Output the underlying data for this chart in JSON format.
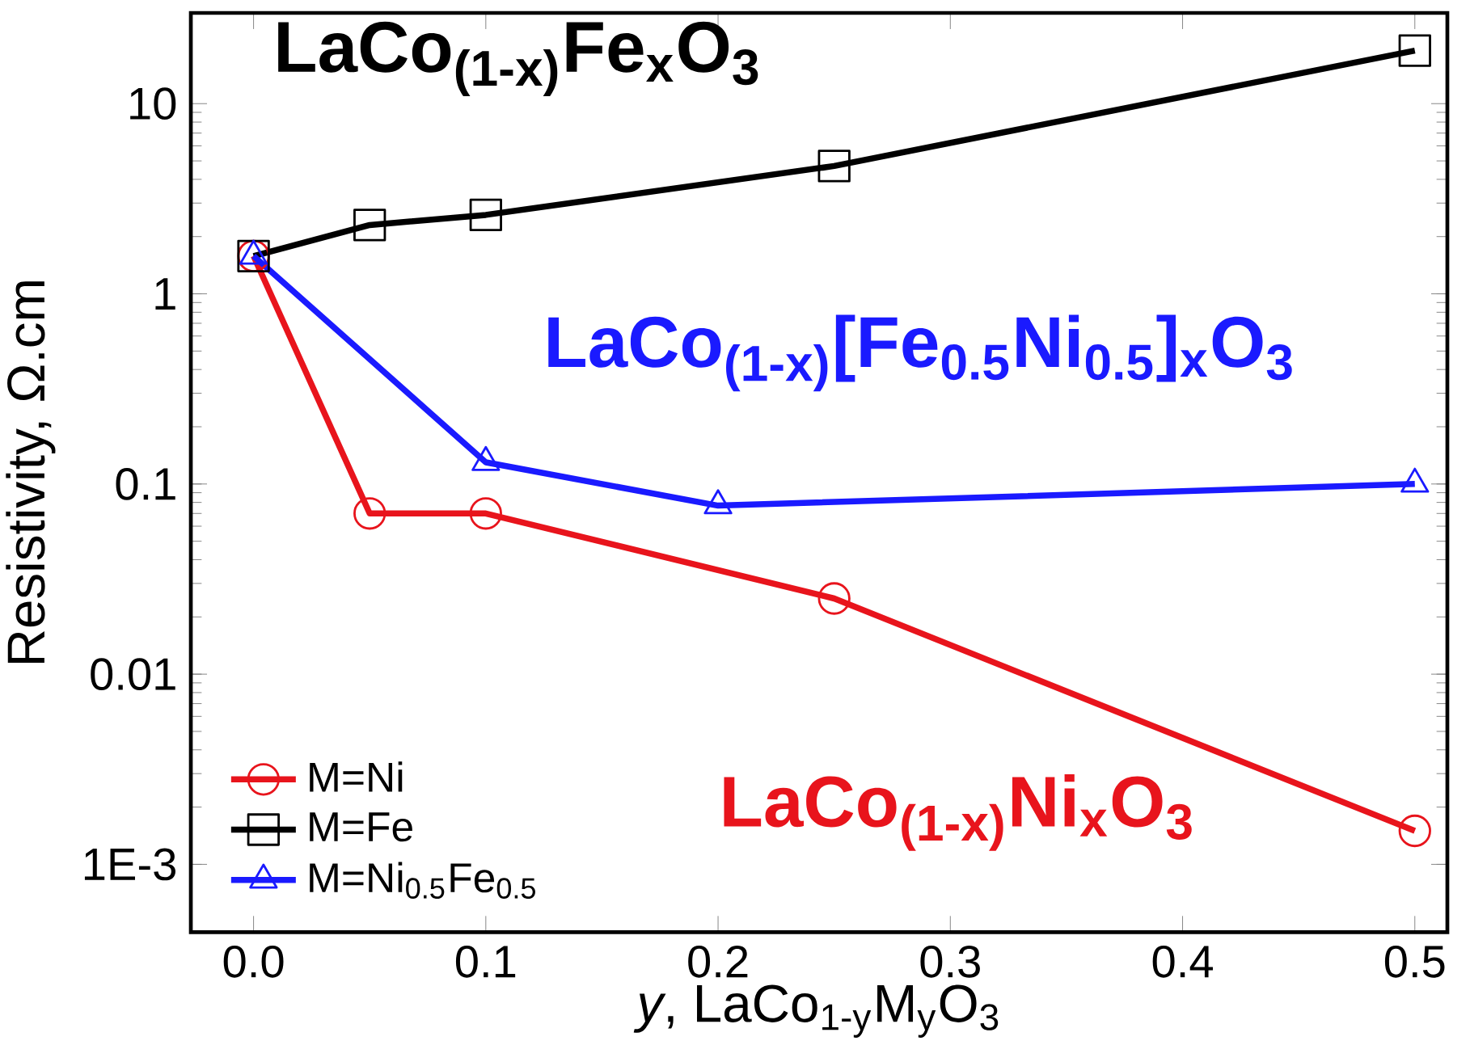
{
  "chart_data": {
    "type": "line",
    "xlabel": "*y*, LaCo$_{1-y}$M$_{y}$O$_{3}$",
    "ylabel": "Resistivity, Ω.cm",
    "log": "y",
    "legend": "bottom left",
    "line_style": "solid",
    "xlim": [
      -0.027,
      0.514
    ],
    "ylim": [
      0.00044,
      30
    ],
    "xticks": [
      {
        "value": 0,
        "label": "0.0"
      },
      0.1,
      0.2,
      0.3,
      0.4,
      0.5
    ],
    "yticks": [
      {
        "value": 0.001,
        "label": "1E-3"
      },
      0.01,
      0.1,
      1,
      10
    ],
    "series": [
      {
        "name": "M=Ni",
        "color": "#e8141c",
        "marker": "circle",
        "x": [
          0,
          0.05,
          0.1,
          0.25,
          0.5
        ],
        "values": [
          1.58,
          0.07,
          0.07,
          0.025,
          0.0015
        ]
      },
      {
        "name": "M=Fe",
        "color": "#000000",
        "marker": "square",
        "x": [
          0,
          0.05,
          0.1,
          0.25,
          0.5
        ],
        "values": [
          1.58,
          2.3,
          2.6,
          4.7,
          19
        ]
      },
      {
        "name": "M=Ni$_{0.5}$Fe$_{0.5}$",
        "color": "#1a1aff",
        "marker": "triangle",
        "x": [
          0,
          0.1,
          0.2,
          0.5
        ],
        "values": [
          1.58,
          0.13,
          0.077,
          0.1
        ]
      }
    ],
    "annotations": [
      "LaCo$_{(1-x)}$Ni$_{x}$O$_{3}$",
      "LaCo$_{(1-x)}$Fe$_{x}$O$_{3}$",
      "LaCo$_{(1-x)}$[Fe$_{0.5}$Ni$_{0.5}$]$_{x}$O$_{3}$"
    ]
  }
}
